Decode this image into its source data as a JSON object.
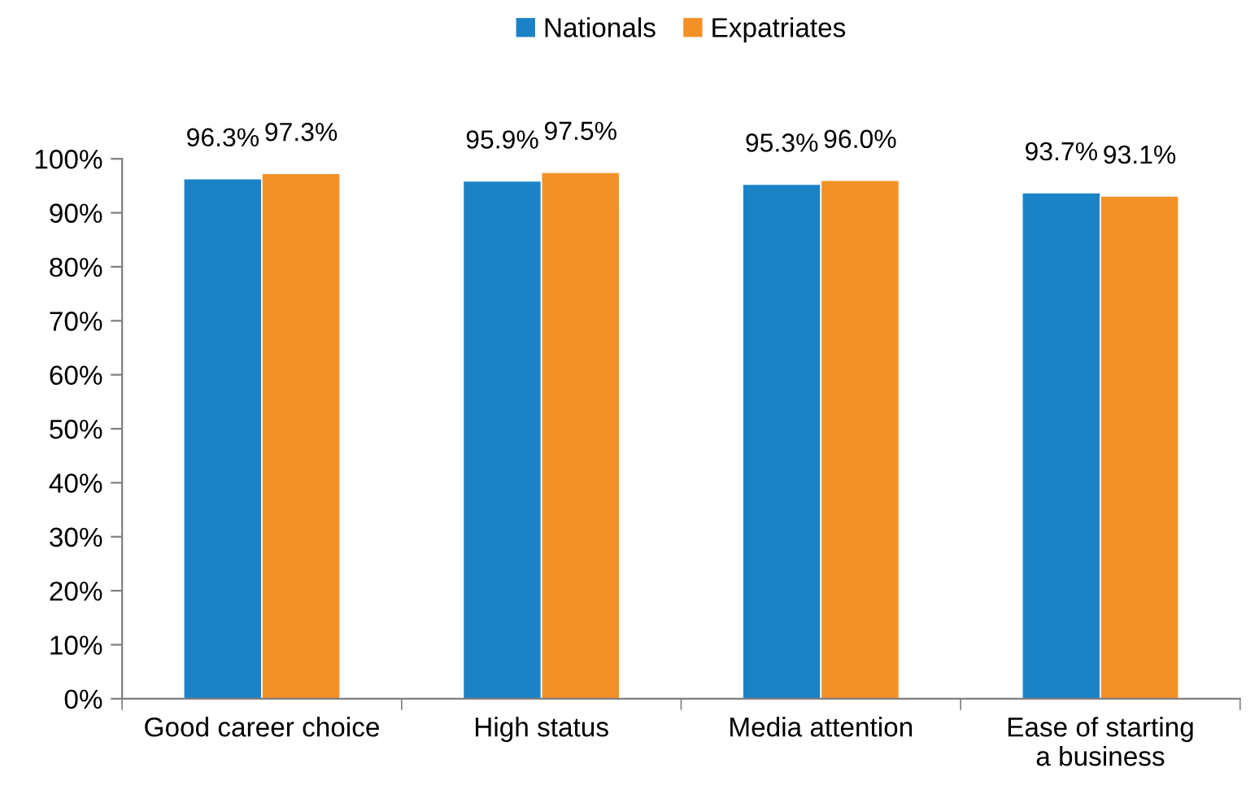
{
  "chart_data": {
    "type": "bar",
    "categories": [
      "Good career choice",
      "High status",
      "Media attention",
      "Ease of starting\na business"
    ],
    "series": [
      {
        "name": "Nationals",
        "color": "#1b82c6",
        "values": [
          96.3,
          95.9,
          95.3,
          93.7
        ],
        "value_labels": [
          "96.3%",
          "95.9%",
          "95.3%",
          "93.7%"
        ]
      },
      {
        "name": "Expatriates",
        "color": "#f39127",
        "values": [
          97.3,
          97.5,
          96.0,
          93.1
        ],
        "value_labels": [
          "97.3%",
          "97.5%",
          "96.0%",
          "93.1%"
        ]
      }
    ],
    "ylim": [
      0,
      100
    ],
    "yticks": [
      {
        "value": 0,
        "label": "0%"
      },
      {
        "value": 10,
        "label": "10%"
      },
      {
        "value": 20,
        "label": "20%"
      },
      {
        "value": 30,
        "label": "30%"
      },
      {
        "value": 40,
        "label": "40%"
      },
      {
        "value": 50,
        "label": "50%"
      },
      {
        "value": 60,
        "label": "60%"
      },
      {
        "value": 70,
        "label": "70%"
      },
      {
        "value": 80,
        "label": "80%"
      },
      {
        "value": 90,
        "label": "90%"
      },
      {
        "value": 100,
        "label": "100%"
      }
    ],
    "grid": false,
    "legend": "top"
  }
}
